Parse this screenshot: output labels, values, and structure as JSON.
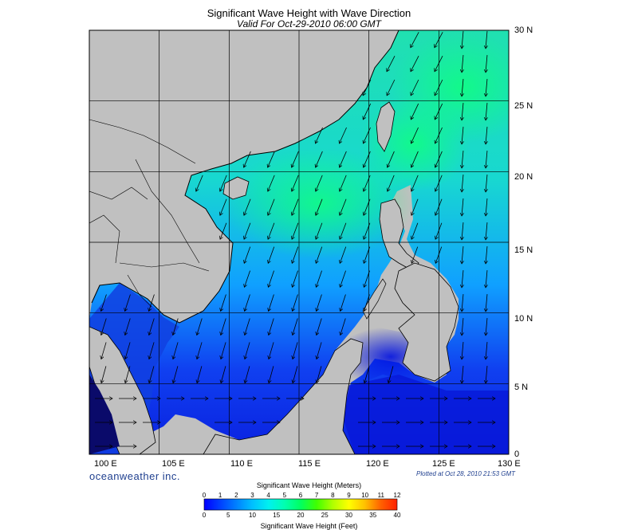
{
  "title": "Significant Wave Height with Wave Direction",
  "subtitle": "Valid For Oct-29-2010 06:00 GMT",
  "lat_labels": [
    "30 N",
    "25 N",
    "20 N",
    "15 N",
    "10 N",
    "5 N",
    "0"
  ],
  "lon_labels": [
    "100 E",
    "105 E",
    "110 E",
    "115 E",
    "120 E",
    "125 E",
    "130 E"
  ],
  "brand": "oceanweather inc.",
  "plotted": "Plotted at Oct 28, 2010 21:53 GMT",
  "colorbar": {
    "title_meters": "Significant Wave Height (Meters)",
    "title_feet": "Significant Wave Height (Feet)",
    "meters_ticks": [
      "0",
      "1",
      "2",
      "3",
      "4",
      "5",
      "6",
      "7",
      "8",
      "9",
      "10",
      "11",
      "12"
    ],
    "feet_ticks": [
      "0",
      "5",
      "10",
      "15",
      "20",
      "25",
      "30",
      "35",
      "40"
    ],
    "colors": [
      "#0000ff",
      "#0040ff",
      "#0080ff",
      "#00c0ff",
      "#00f0f0",
      "#00ffb0",
      "#00ff60",
      "#40ff00",
      "#b0ff00",
      "#ffff00",
      "#ffc000",
      "#ff6000",
      "#ff2000"
    ]
  },
  "map": {
    "extent": {
      "lon": [
        100,
        130
      ],
      "lat": [
        0,
        30
      ]
    },
    "land_color": "#c0c0c0",
    "grid_color": "#000000"
  }
}
